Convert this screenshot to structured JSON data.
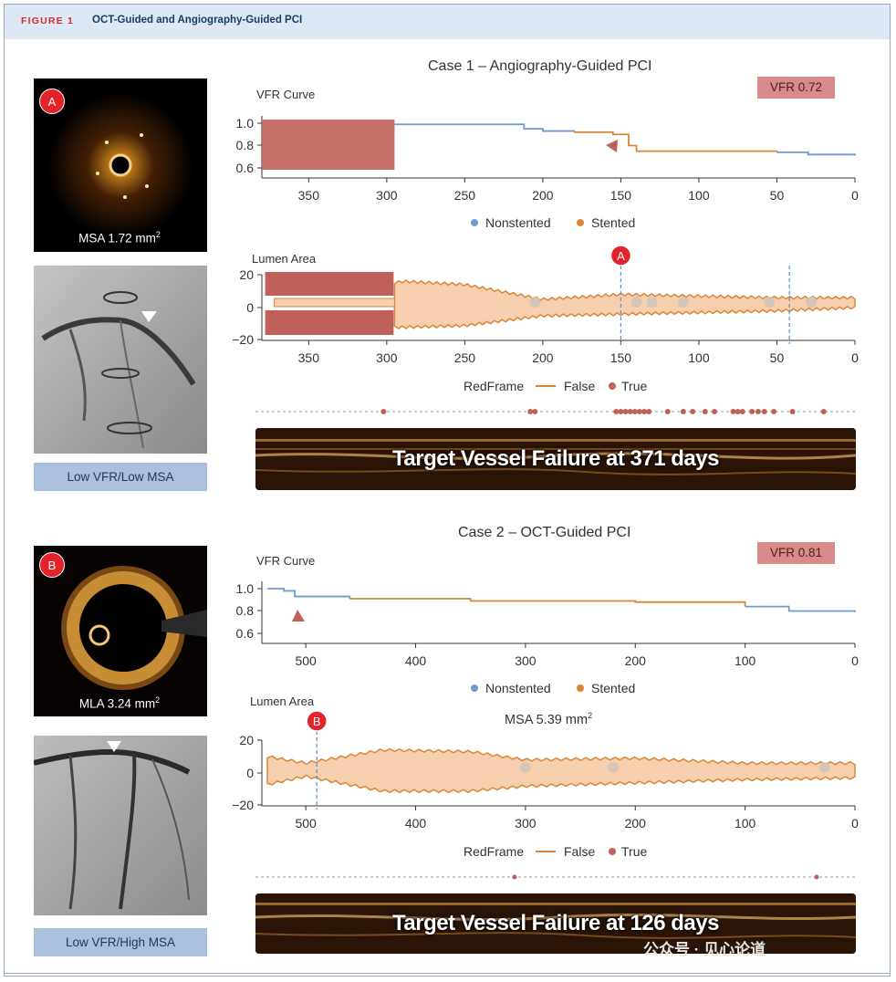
{
  "figure": {
    "label": "FIGURE 1",
    "title": "OCT-Guided and Angiography-Guided PCI"
  },
  "cases": [
    {
      "title": "Case 1 – Angiography-Guided PCI",
      "vfr_badge": "VFR 0.72",
      "oct_marker": "A",
      "oct_caption": "MSA 1.72 mm",
      "oct_caption_sup": "2",
      "classification": "Low VFR/Low MSA",
      "vfr_curve": {
        "axis_title": "VFR Curve",
        "x_ticks": [
          "350",
          "300",
          "250",
          "200",
          "150",
          "100",
          "50",
          "0"
        ],
        "y_ticks": [
          "1.0",
          "0.8",
          "0.6"
        ],
        "legend": [
          "Nonstented",
          "Stented"
        ]
      },
      "lumen_area": {
        "axis_title": "Lumen Area",
        "x_ticks": [
          "350",
          "300",
          "250",
          "200",
          "150",
          "100",
          "50",
          "0"
        ],
        "y_ticks": [
          "20",
          "0",
          "−20"
        ],
        "legend_title": "RedFrame",
        "legend": [
          "False",
          "True"
        ],
        "marker": "A"
      },
      "outcome": "Target Vessel Failure at 371 days"
    },
    {
      "title": "Case 2 – OCT-Guided PCI",
      "vfr_badge": "VFR 0.81",
      "oct_marker": "B",
      "oct_caption": "MLA 3.24 mm",
      "oct_caption_sup": "2",
      "classification": "Low VFR/High MSA",
      "msa_label": "MSA 5.39 mm",
      "msa_label_sup": "2",
      "vfr_curve": {
        "axis_title": "VFR Curve",
        "x_ticks": [
          "500",
          "400",
          "300",
          "200",
          "100",
          "0"
        ],
        "y_ticks": [
          "1.0",
          "0.8",
          "0.6"
        ],
        "legend": [
          "Nonstented",
          "Stented"
        ]
      },
      "lumen_area": {
        "axis_title": "Lumen Area",
        "x_ticks": [
          "500",
          "400",
          "300",
          "200",
          "100",
          "0"
        ],
        "y_ticks": [
          "20",
          "0",
          "−20"
        ],
        "legend_title": "RedFrame",
        "legend": [
          "False",
          "True"
        ],
        "marker": "B"
      },
      "outcome": "Target Vessel Failure at 126 days"
    }
  ],
  "watermark": "公众号 · 见心论道",
  "colors": {
    "nonstented": "#6f9ccc",
    "stented": "#d8873a",
    "lumen_fill": "#f6cfae",
    "redframe": "#c0605a",
    "marker": "#e2232a",
    "header_bg": "#dde8f4",
    "figure_label": "#d5282f"
  },
  "chart_data": [
    {
      "type": "line",
      "title": "VFR Curve",
      "case": "Case 1",
      "xlabel": "",
      "ylabel": "",
      "xlim": [
        380,
        0
      ],
      "ylim": [
        0.6,
        1.0
      ],
      "series": [
        {
          "name": "Nonstented",
          "x": [
            295,
            230,
            212,
            200,
            180
          ],
          "y": [
            0.99,
            0.99,
            0.95,
            0.93,
            0.92
          ]
        },
        {
          "name": "Stented",
          "x": [
            180,
            155,
            145,
            140,
            50
          ],
          "y": [
            0.92,
            0.9,
            0.8,
            0.75,
            0.74
          ]
        },
        {
          "name": "Nonstented",
          "x": [
            50,
            30,
            0
          ],
          "y": [
            0.74,
            0.72,
            0.71
          ]
        }
      ],
      "excluded_region": [
        295,
        380
      ]
    },
    {
      "type": "area",
      "title": "Lumen Area",
      "case": "Case 1",
      "xlim": [
        380,
        0
      ],
      "ylim": [
        -20,
        20
      ],
      "series": [
        {
          "name": "upper",
          "x": [
            295,
            290,
            250,
            200,
            150,
            100,
            50,
            0
          ],
          "y": [
            15,
            16,
            14,
            5,
            8,
            7,
            6,
            6
          ]
        },
        {
          "name": "lower",
          "x": [
            295,
            290,
            250,
            200,
            150,
            100,
            50,
            0
          ],
          "y": [
            -12,
            -12,
            -11,
            -5,
            -4,
            -3,
            -2,
            0
          ]
        }
      ],
      "redframe_true_marker": "A"
    },
    {
      "type": "line",
      "title": "VFR Curve",
      "case": "Case 2",
      "xlim": [
        540,
        0
      ],
      "ylim": [
        0.6,
        1.0
      ],
      "series": [
        {
          "name": "Nonstented",
          "x": [
            535,
            520,
            510,
            460
          ],
          "y": [
            1.0,
            0.98,
            0.93,
            0.91
          ]
        },
        {
          "name": "Stented",
          "x": [
            460,
            350,
            200,
            100
          ],
          "y": [
            0.91,
            0.89,
            0.88,
            0.84
          ]
        },
        {
          "name": "Nonstented",
          "x": [
            100,
            60,
            0
          ],
          "y": [
            0.84,
            0.8,
            0.79
          ]
        }
      ]
    },
    {
      "type": "area",
      "title": "Lumen Area",
      "case": "Case 2",
      "xlim": [
        540,
        0
      ],
      "ylim": [
        -20,
        20
      ],
      "series": [
        {
          "name": "upper",
          "x": [
            535,
            500,
            430,
            350,
            300,
            200,
            100,
            0
          ],
          "y": [
            10,
            6,
            14,
            13,
            8,
            9,
            6,
            6
          ]
        },
        {
          "name": "lower",
          "x": [
            535,
            500,
            430,
            350,
            300,
            200,
            100,
            0
          ],
          "y": [
            -7,
            -2,
            -11,
            -11,
            -8,
            -6,
            -4,
            -3
          ]
        }
      ],
      "redframe_true_marker": "B"
    }
  ]
}
